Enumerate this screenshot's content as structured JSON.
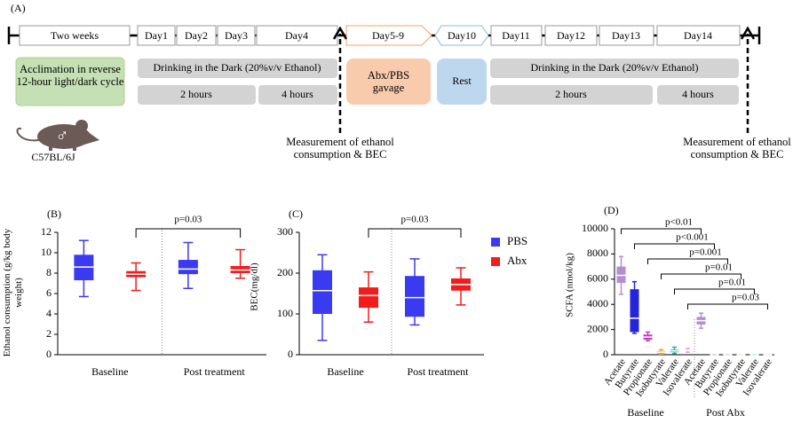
{
  "panel_a": {
    "label": "(A)",
    "timeline": [
      "Two weeks",
      "Day1",
      "Day2",
      "Day3",
      "Day4",
      "Day5-9",
      "Day10",
      "Day11",
      "Day12",
      "Day13",
      "Day14"
    ],
    "acclimation": "Acclimation in reverse 12-hour light/dark cycle",
    "drinking_1": "Drinking in the Dark (20%v/v Ethanol)",
    "hours_1": [
      "2 hours",
      "4 hours"
    ],
    "gavage": "Abx/PBS gavage",
    "rest": "Rest",
    "drinking_2": "Drinking in the Dark (20%v/v Ethanol)",
    "hours_2": [
      "2 hours",
      "4 hours"
    ],
    "measurement_1": "Measurement of ethanol consumption & BEC",
    "measurement_2": "Measurement of ethanol consumption & BEC",
    "mouse_sex": "♂",
    "mouse_strain": "C57BL/6J"
  },
  "chart_data": [
    {
      "type": "box",
      "label": "(B)",
      "y_label": "Ethanol consumption (g/kg body weight)",
      "ylim": [
        0,
        12
      ],
      "yticks": [
        0,
        2,
        4,
        6,
        8,
        10,
        12
      ],
      "groups": [
        "Baseline",
        "Post treatment"
      ],
      "annotation": "p=0.03",
      "legend": false,
      "series": [
        {
          "name": "PBS",
          "color": "#3a3af0",
          "boxes": [
            {
              "min": 5.7,
              "q1": 7.3,
              "median": 8.6,
              "q3": 9.8,
              "max": 11.2
            },
            {
              "min": 6.5,
              "q1": 7.9,
              "median": 8.4,
              "q3": 9.3,
              "max": 11.0
            }
          ]
        },
        {
          "name": "Abx",
          "color": "#f21c1c",
          "boxes": [
            {
              "min": 6.3,
              "q1": 7.6,
              "median": 7.9,
              "q3": 8.2,
              "max": 9.0
            },
            {
              "min": 7.5,
              "q1": 8.0,
              "median": 8.3,
              "q3": 8.7,
              "max": 10.3
            }
          ]
        }
      ]
    },
    {
      "type": "box",
      "label": "(C)",
      "y_label": "BEC(mg/dl)",
      "ylim": [
        0,
        300
      ],
      "yticks": [
        0,
        100,
        200,
        300
      ],
      "groups": [
        "Baseline",
        "Post treatment"
      ],
      "annotation": "p=0.03",
      "legend": true,
      "series": [
        {
          "name": "PBS",
          "color": "#3a3af0",
          "boxes": [
            {
              "min": 35,
              "q1": 100,
              "median": 157,
              "q3": 207,
              "max": 245
            },
            {
              "min": 73,
              "q1": 93,
              "median": 140,
              "q3": 193,
              "max": 235
            }
          ]
        },
        {
          "name": "Abx",
          "color": "#f21c1c",
          "boxes": [
            {
              "min": 80,
              "q1": 115,
              "median": 145,
              "q3": 165,
              "max": 203
            },
            {
              "min": 122,
              "q1": 157,
              "median": 172,
              "q3": 187,
              "max": 213
            }
          ]
        }
      ]
    },
    {
      "type": "scfa",
      "label": "(D)",
      "y_label": "SCFA (nmol/kg)",
      "ylim": [
        0,
        10000
      ],
      "yticks": [
        0,
        2000,
        4000,
        6000,
        8000,
        10000
      ],
      "groups": [
        "Baseline",
        "Post Abx"
      ],
      "categories": [
        "Acetate",
        "Butyrate",
        "Propionate",
        "Isobutyrate",
        "Valerate",
        "Isovalerate",
        "Acetate",
        "Butyrate",
        "Propionate",
        "Isobutyrate",
        "Valerate",
        "Isovalerate"
      ],
      "colors": [
        "#b48ed4",
        "#2424d8",
        "#c43cc4",
        "#f0a030",
        "#22b0a0",
        "#d8a8d8",
        "#b48ed4",
        "#2424d8",
        "#c43cc4",
        "#f0a030",
        "#22b0a0",
        "#d8a8d8"
      ],
      "boxes": [
        {
          "min": 4800,
          "q1": 5700,
          "median": 6300,
          "q3": 7000,
          "max": 7800
        },
        {
          "min": 1700,
          "q1": 1800,
          "median": 2900,
          "q3": 5200,
          "max": 5800
        },
        {
          "min": 1100,
          "q1": 1200,
          "median": 1400,
          "q3": 1600,
          "max": 1800
        },
        {
          "min": 50,
          "q1": 100,
          "median": 200,
          "q3": 300,
          "max": 400
        },
        {
          "min": 100,
          "q1": 200,
          "median": 300,
          "q3": 400,
          "max": 600
        },
        {
          "min": 200,
          "q1": 300,
          "median": 350,
          "q3": 400,
          "max": 500
        },
        {
          "min": 2100,
          "q1": 2400,
          "median": 2700,
          "q3": 3000,
          "max": 3300
        },
        {
          "min": 0,
          "q1": 0,
          "median": 0,
          "q3": 0,
          "max": 0
        },
        {
          "min": 0,
          "q1": 0,
          "median": 0,
          "q3": 0,
          "max": 0
        },
        {
          "min": 0,
          "q1": 0,
          "median": 0,
          "q3": 0,
          "max": 0
        },
        {
          "min": 0,
          "q1": 0,
          "median": 0,
          "q3": 0,
          "max": 0
        },
        {
          "min": 0,
          "q1": 0,
          "median": 0,
          "q3": 0,
          "max": 0
        }
      ],
      "annotations": [
        "p<0.01",
        "p<0.001",
        "p=0.001",
        "p=0.01",
        "p=0.01",
        "p=0.03"
      ]
    }
  ]
}
